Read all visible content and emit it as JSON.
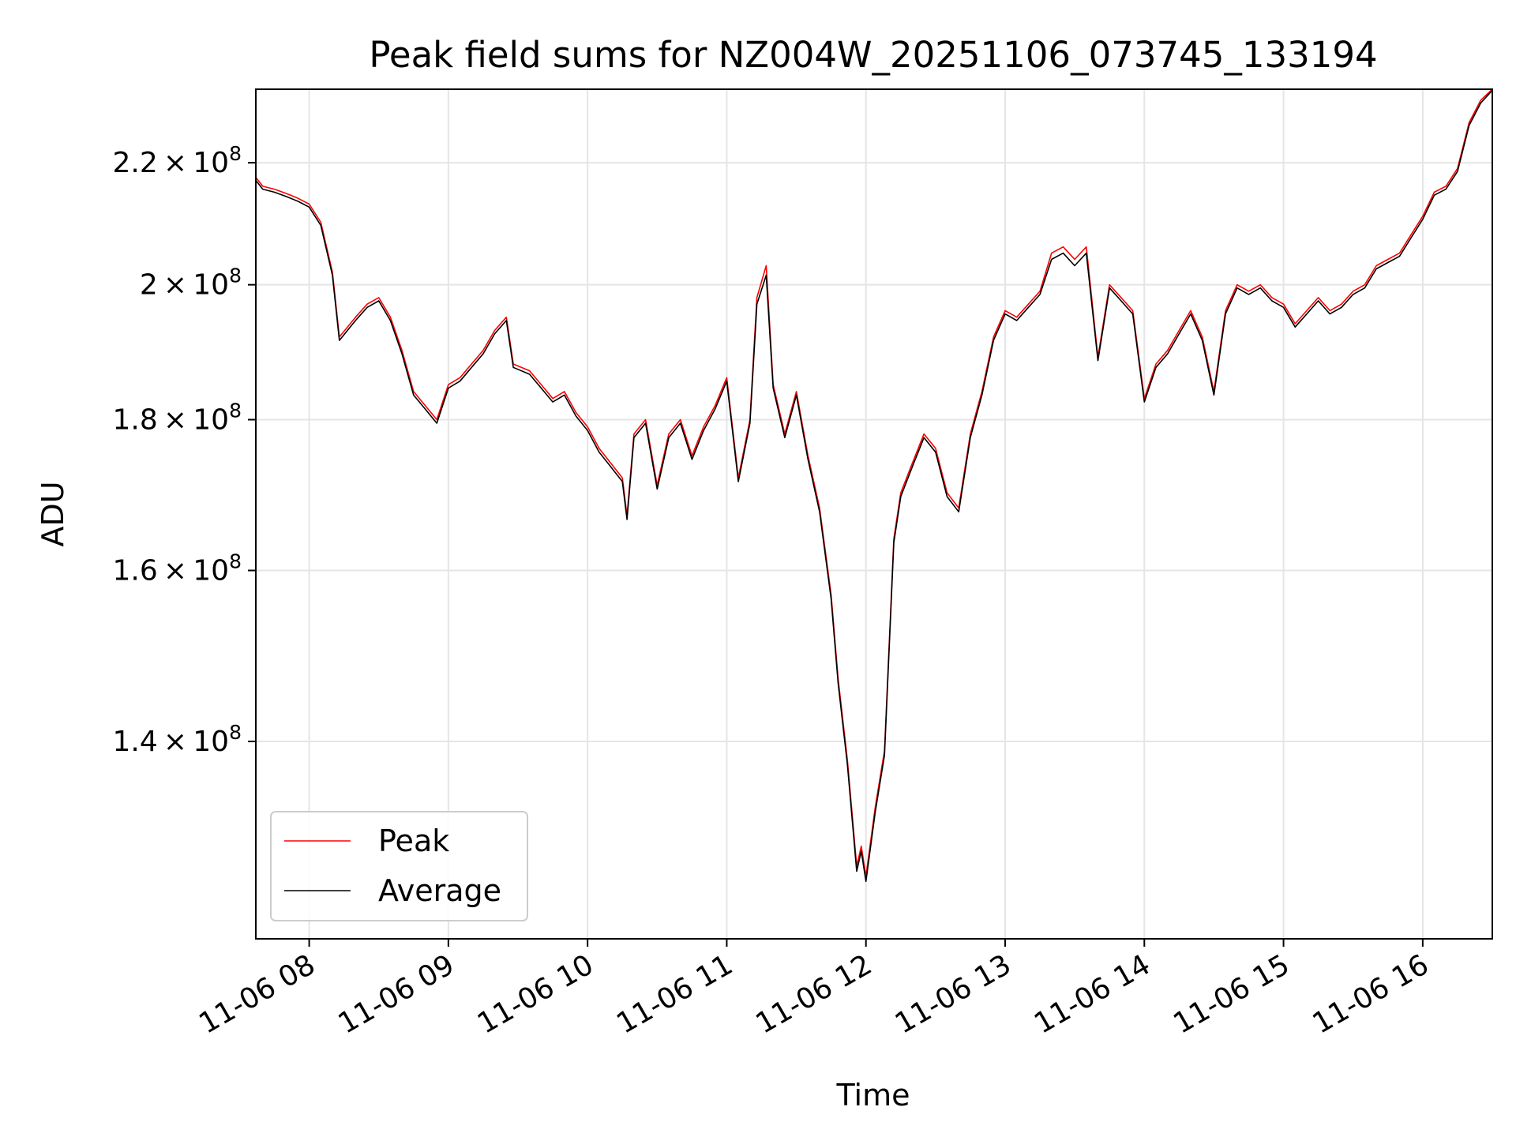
{
  "chart_data": {
    "type": "line",
    "title": "Peak field sums for NZ004W_20251106_073745_133194",
    "xlabel": "Time",
    "ylabel": "ADU",
    "y_scale": "log",
    "xlim": [
      "2025-11-06 07:37",
      "2025-11-06 16:30"
    ],
    "ylim": [
      120000000,
      233000000
    ],
    "grid": true,
    "legend_position": "lower-left",
    "x_ticks": [
      "2025-11-06 08:00",
      "2025-11-06 09:00",
      "2025-11-06 10:00",
      "2025-11-06 11:00",
      "2025-11-06 12:00",
      "2025-11-06 13:00",
      "2025-11-06 14:00",
      "2025-11-06 15:00",
      "2025-11-06 16:00"
    ],
    "x_tick_labels": [
      "11-06 08",
      "11-06 09",
      "11-06 10",
      "11-06 11",
      "11-06 12",
      "11-06 13",
      "11-06 14",
      "11-06 15",
      "11-06 16"
    ],
    "y_ticks": [
      140000000,
      160000000,
      180000000,
      200000000,
      220000000
    ],
    "y_tick_labels": [
      {
        "mant": "1.4",
        "exp": "8"
      },
      {
        "mant": "1.6",
        "exp": "8"
      },
      {
        "mant": "1.8",
        "exp": "8"
      },
      {
        "mant": "2",
        "exp": "8"
      },
      {
        "mant": "2.2",
        "exp": "8"
      }
    ],
    "series": [
      {
        "name": "Peak",
        "color": "#ff0000",
        "x": [
          "2025-11-06 07:37",
          "2025-11-06 07:40",
          "2025-11-06 07:45",
          "2025-11-06 07:50",
          "2025-11-06 07:55",
          "2025-11-06 08:00",
          "2025-11-06 08:05",
          "2025-11-06 08:10",
          "2025-11-06 08:13",
          "2025-11-06 08:20",
          "2025-11-06 08:25",
          "2025-11-06 08:30",
          "2025-11-06 08:35",
          "2025-11-06 08:40",
          "2025-11-06 08:45",
          "2025-11-06 08:50",
          "2025-11-06 08:55",
          "2025-11-06 09:00",
          "2025-11-06 09:05",
          "2025-11-06 09:10",
          "2025-11-06 09:15",
          "2025-11-06 09:20",
          "2025-11-06 09:25",
          "2025-11-06 09:28",
          "2025-11-06 09:35",
          "2025-11-06 09:40",
          "2025-11-06 09:45",
          "2025-11-06 09:50",
          "2025-11-06 09:55",
          "2025-11-06 10:00",
          "2025-11-06 10:05",
          "2025-11-06 10:10",
          "2025-11-06 10:15",
          "2025-11-06 10:17",
          "2025-11-06 10:20",
          "2025-11-06 10:25",
          "2025-11-06 10:30",
          "2025-11-06 10:35",
          "2025-11-06 10:40",
          "2025-11-06 10:45",
          "2025-11-06 10:50",
          "2025-11-06 10:55",
          "2025-11-06 11:00",
          "2025-11-06 11:05",
          "2025-11-06 11:10",
          "2025-11-06 11:13",
          "2025-11-06 11:17",
          "2025-11-06 11:20",
          "2025-11-06 11:25",
          "2025-11-06 11:30",
          "2025-11-06 11:35",
          "2025-11-06 11:40",
          "2025-11-06 11:45",
          "2025-11-06 11:48",
          "2025-11-06 11:52",
          "2025-11-06 11:56",
          "2025-11-06 11:58",
          "2025-11-06 12:00",
          "2025-11-06 12:04",
          "2025-11-06 12:08",
          "2025-11-06 12:12",
          "2025-11-06 12:15",
          "2025-11-06 12:20",
          "2025-11-06 12:25",
          "2025-11-06 12:30",
          "2025-11-06 12:35",
          "2025-11-06 12:40",
          "2025-11-06 12:45",
          "2025-11-06 12:50",
          "2025-11-06 12:55",
          "2025-11-06 13:00",
          "2025-11-06 13:05",
          "2025-11-06 13:10",
          "2025-11-06 13:15",
          "2025-11-06 13:20",
          "2025-11-06 13:25",
          "2025-11-06 13:30",
          "2025-11-06 13:35",
          "2025-11-06 13:40",
          "2025-11-06 13:45",
          "2025-11-06 13:50",
          "2025-11-06 13:55",
          "2025-11-06 14:00",
          "2025-11-06 14:05",
          "2025-11-06 14:10",
          "2025-11-06 14:15",
          "2025-11-06 14:20",
          "2025-11-06 14:25",
          "2025-11-06 14:30",
          "2025-11-06 14:35",
          "2025-11-06 14:40",
          "2025-11-06 14:45",
          "2025-11-06 14:50",
          "2025-11-06 14:55",
          "2025-11-06 15:00",
          "2025-11-06 15:05",
          "2025-11-06 15:10",
          "2025-11-06 15:15",
          "2025-11-06 15:20",
          "2025-11-06 15:25",
          "2025-11-06 15:30",
          "2025-11-06 15:35",
          "2025-11-06 15:40",
          "2025-11-06 15:45",
          "2025-11-06 15:50",
          "2025-11-06 15:55",
          "2025-11-06 16:00",
          "2025-11-06 16:05",
          "2025-11-06 16:10",
          "2025-11-06 16:15",
          "2025-11-06 16:20",
          "2025-11-06 16:25",
          "2025-11-06 16:30"
        ],
        "y": [
          217500000,
          216000000,
          215500000,
          214800000,
          214000000,
          213000000,
          210000000,
          202000000,
          192000000,
          195000000,
          197000000,
          198000000,
          195000000,
          190000000,
          184000000,
          182000000,
          180000000,
          185000000,
          186000000,
          188000000,
          190000000,
          193000000,
          195000000,
          188000000,
          187000000,
          185000000,
          183000000,
          184000000,
          181000000,
          179000000,
          176000000,
          174000000,
          172000000,
          167000000,
          178000000,
          180000000,
          171000000,
          178000000,
          180000000,
          175000000,
          179000000,
          182000000,
          186000000,
          172000000,
          180000000,
          198000000,
          203000000,
          185000000,
          178000000,
          184000000,
          175000000,
          168000000,
          157000000,
          147000000,
          138000000,
          127000000,
          129000000,
          126000000,
          133000000,
          139000000,
          164000000,
          170000000,
          174000000,
          178000000,
          176000000,
          170000000,
          168000000,
          178000000,
          184000000,
          192000000,
          196000000,
          195000000,
          197000000,
          199000000,
          205000000,
          206000000,
          204000000,
          206000000,
          189000000,
          200000000,
          198000000,
          196000000,
          183000000,
          188000000,
          190000000,
          193000000,
          196000000,
          192000000,
          184000000,
          196000000,
          200000000,
          199000000,
          200000000,
          198000000,
          197000000,
          194000000,
          196000000,
          198000000,
          196000000,
          197000000,
          199000000,
          200000000,
          203000000,
          204000000,
          205000000,
          208000000,
          211000000,
          215000000,
          216000000,
          219000000,
          227000000,
          231000000,
          233000000
        ]
      },
      {
        "name": "Average",
        "color": "#000000",
        "x": [
          "2025-11-06 07:37",
          "2025-11-06 07:40",
          "2025-11-06 07:45",
          "2025-11-06 07:50",
          "2025-11-06 07:55",
          "2025-11-06 08:00",
          "2025-11-06 08:05",
          "2025-11-06 08:10",
          "2025-11-06 08:13",
          "2025-11-06 08:20",
          "2025-11-06 08:25",
          "2025-11-06 08:30",
          "2025-11-06 08:35",
          "2025-11-06 08:40",
          "2025-11-06 08:45",
          "2025-11-06 08:50",
          "2025-11-06 08:55",
          "2025-11-06 09:00",
          "2025-11-06 09:05",
          "2025-11-06 09:10",
          "2025-11-06 09:15",
          "2025-11-06 09:20",
          "2025-11-06 09:25",
          "2025-11-06 09:28",
          "2025-11-06 09:35",
          "2025-11-06 09:40",
          "2025-11-06 09:45",
          "2025-11-06 09:50",
          "2025-11-06 09:55",
          "2025-11-06 10:00",
          "2025-11-06 10:05",
          "2025-11-06 10:10",
          "2025-11-06 10:15",
          "2025-11-06 10:17",
          "2025-11-06 10:20",
          "2025-11-06 10:25",
          "2025-11-06 10:30",
          "2025-11-06 10:35",
          "2025-11-06 10:40",
          "2025-11-06 10:45",
          "2025-11-06 10:50",
          "2025-11-06 10:55",
          "2025-11-06 11:00",
          "2025-11-06 11:05",
          "2025-11-06 11:10",
          "2025-11-06 11:13",
          "2025-11-06 11:17",
          "2025-11-06 11:20",
          "2025-11-06 11:25",
          "2025-11-06 11:30",
          "2025-11-06 11:35",
          "2025-11-06 11:40",
          "2025-11-06 11:45",
          "2025-11-06 11:48",
          "2025-11-06 11:52",
          "2025-11-06 11:56",
          "2025-11-06 11:58",
          "2025-11-06 12:00",
          "2025-11-06 12:04",
          "2025-11-06 12:08",
          "2025-11-06 12:12",
          "2025-11-06 12:15",
          "2025-11-06 12:20",
          "2025-11-06 12:25",
          "2025-11-06 12:30",
          "2025-11-06 12:35",
          "2025-11-06 12:40",
          "2025-11-06 12:45",
          "2025-11-06 12:50",
          "2025-11-06 12:55",
          "2025-11-06 13:00",
          "2025-11-06 13:05",
          "2025-11-06 13:10",
          "2025-11-06 13:15",
          "2025-11-06 13:20",
          "2025-11-06 13:25",
          "2025-11-06 13:30",
          "2025-11-06 13:35",
          "2025-11-06 13:40",
          "2025-11-06 13:45",
          "2025-11-06 13:50",
          "2025-11-06 13:55",
          "2025-11-06 14:00",
          "2025-11-06 14:05",
          "2025-11-06 14:10",
          "2025-11-06 14:15",
          "2025-11-06 14:20",
          "2025-11-06 14:25",
          "2025-11-06 14:30",
          "2025-11-06 14:35",
          "2025-11-06 14:40",
          "2025-11-06 14:45",
          "2025-11-06 14:50",
          "2025-11-06 14:55",
          "2025-11-06 15:00",
          "2025-11-06 15:05",
          "2025-11-06 15:10",
          "2025-11-06 15:15",
          "2025-11-06 15:20",
          "2025-11-06 15:25",
          "2025-11-06 15:30",
          "2025-11-06 15:35",
          "2025-11-06 15:40",
          "2025-11-06 15:45",
          "2025-11-06 15:50",
          "2025-11-06 15:55",
          "2025-11-06 16:00",
          "2025-11-06 16:05",
          "2025-11-06 16:10",
          "2025-11-06 16:15",
          "2025-11-06 16:20",
          "2025-11-06 16:25",
          "2025-11-06 16:30"
        ],
        "y": [
          217000000,
          215500000,
          215000000,
          214300000,
          213500000,
          212500000,
          209500000,
          201500000,
          191500000,
          194500000,
          196500000,
          197500000,
          194500000,
          189500000,
          183500000,
          181500000,
          179500000,
          184500000,
          185500000,
          187500000,
          189500000,
          192500000,
          194500000,
          187500000,
          186500000,
          184500000,
          182500000,
          183500000,
          180500000,
          178500000,
          175500000,
          173500000,
          171500000,
          166500000,
          177500000,
          179500000,
          170500000,
          177500000,
          179500000,
          174500000,
          178500000,
          181500000,
          185500000,
          171500000,
          179500000,
          197000000,
          201500000,
          184500000,
          177500000,
          183500000,
          174500000,
          167500000,
          156500000,
          146500000,
          137500000,
          126500000,
          128500000,
          125500000,
          132500000,
          138500000,
          163500000,
          169500000,
          173500000,
          177500000,
          175500000,
          169500000,
          167500000,
          177500000,
          183500000,
          191500000,
          195500000,
          194500000,
          196500000,
          198500000,
          204000000,
          205000000,
          203000000,
          205000000,
          188500000,
          199500000,
          197500000,
          195500000,
          182500000,
          187500000,
          189500000,
          192500000,
          195500000,
          191500000,
          183500000,
          195500000,
          199500000,
          198500000,
          199500000,
          197500000,
          196500000,
          193500000,
          195500000,
          197500000,
          195500000,
          196500000,
          198500000,
          199500000,
          202500000,
          203500000,
          204500000,
          207500000,
          210500000,
          214500000,
          215500000,
          218500000,
          226500000,
          230500000,
          232800000
        ]
      }
    ]
  }
}
